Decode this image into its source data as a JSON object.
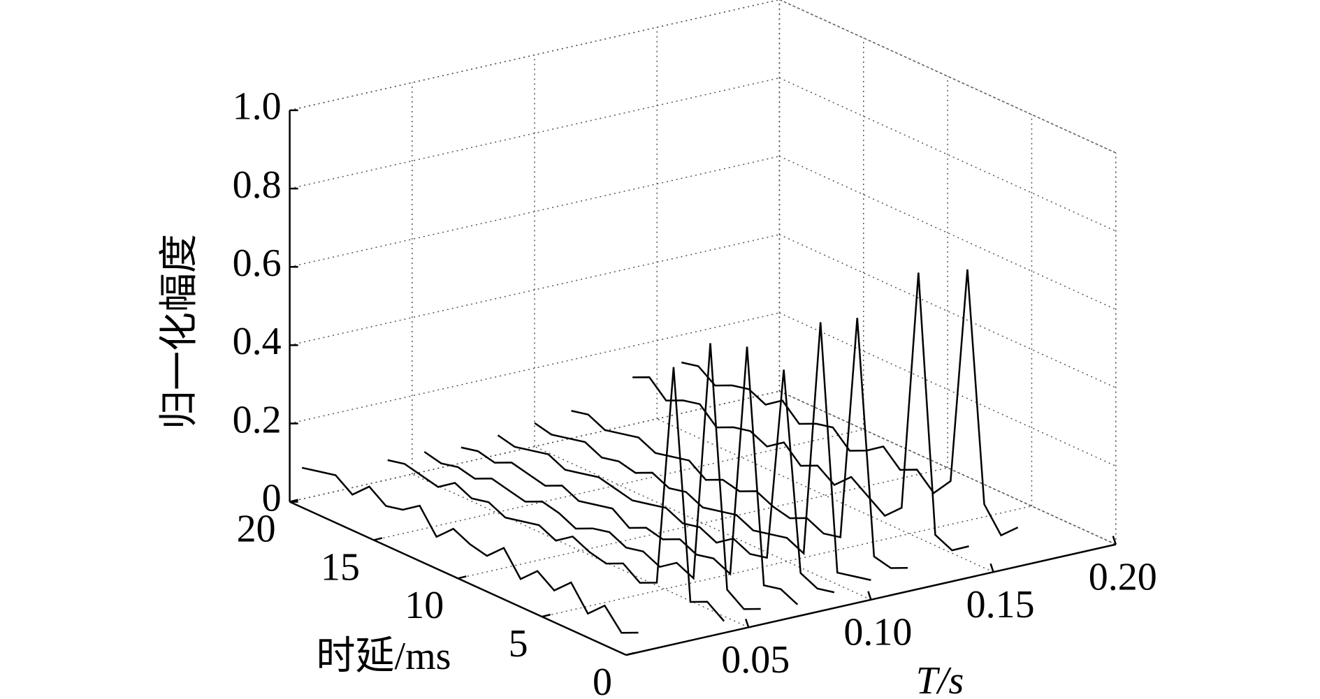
{
  "chart_data": {
    "type": "waterfall3d",
    "zlabel": "归一化幅度",
    "ylabel": "时延/ms",
    "xlabel": "T/s",
    "zlim": [
      0,
      1
    ],
    "zticks": [
      0,
      0.2,
      0.4,
      0.6,
      0.8,
      {
        "value": 1,
        "label": "1.0"
      }
    ],
    "ylim": [
      0,
      20
    ],
    "yticks": [
      0,
      5,
      10,
      15,
      20
    ],
    "xlim": [
      0,
      0.2
    ],
    "xticks": [
      0.05,
      {
        "value": 0.1,
        "label": "0.10"
      },
      0.15,
      {
        "value": 0.2,
        "label": "0.20"
      }
    ],
    "grid": true,
    "color": "#000000",
    "delays": [
      0,
      1,
      2,
      3,
      4,
      5,
      6,
      7,
      8,
      9,
      10,
      11,
      12,
      13,
      14,
      15,
      16,
      17,
      18,
      19,
      20
    ],
    "series": [
      {
        "t": 0.005,
        "values": [
          0.05,
          0.03,
          0.08,
          0.04,
          0.1,
          0.06,
          0.09,
          0.05,
          0.11,
          0.07,
          0.08,
          0.1,
          0.06,
          0.12,
          0.09,
          0.08,
          0.11,
          0.07,
          0.1,
          0.09,
          0.08
        ]
      },
      {
        "t": 0.04,
        "values": [
          0.03,
          0.06,
          0.04,
          0.62,
          0.05,
          0.03,
          0.06,
          0.04,
          0.05,
          0.07,
          0.04,
          0.06,
          0.05,
          0.04,
          0.06,
          0.05,
          0.07,
          0.04,
          0.05,
          0.06,
          0.05
        ]
      },
      {
        "t": 0.055,
        "values": [
          0.04,
          0.02,
          0.05,
          0.66,
          0.04,
          0.06,
          0.03,
          0.05,
          0.04,
          0.06,
          0.05,
          0.03,
          0.05,
          0.06,
          0.04,
          0.05,
          0.06,
          0.04,
          0.05,
          0.04,
          0.05
        ]
      },
      {
        "t": 0.07,
        "values": [
          0.03,
          0.05,
          0.04,
          0.63,
          0.03,
          0.05,
          0.04,
          0.06,
          0.04,
          0.05,
          0.03,
          0.06,
          0.05,
          0.04,
          0.06,
          0.04,
          0.05,
          0.06,
          0.04,
          0.05,
          0.04
        ]
      },
      {
        "t": 0.085,
        "values": [
          0.04,
          0.03,
          0.05,
          0.55,
          0.05,
          0.04,
          0.06,
          0.03,
          0.05,
          0.04,
          0.06,
          0.05,
          0.04,
          0.05,
          0.06,
          0.05,
          0.04,
          0.06,
          0.05,
          0.04,
          0.05
        ]
      },
      {
        "t": 0.1,
        "values": [
          0.05,
          0.04,
          0.03,
          0.65,
          0.04,
          0.06,
          0.05,
          0.04,
          0.06,
          0.05,
          0.04,
          0.06,
          0.05,
          0.07,
          0.05,
          0.06,
          0.05,
          0.07,
          0.06,
          0.05,
          0.06
        ]
      },
      {
        "t": 0.115,
        "values": [
          0.06,
          0.04,
          0.05,
          0.64,
          0.06,
          0.05,
          0.07,
          0.05,
          0.06,
          0.08,
          0.06,
          0.07,
          0.05,
          0.08,
          0.07,
          0.06,
          0.08,
          0.07,
          0.06,
          0.08,
          0.07
        ]
      },
      {
        "t": 0.14,
        "values": [
          0.08,
          0.05,
          0.07,
          0.72,
          0.1,
          0.06,
          0.09,
          0.12,
          0.08,
          0.11,
          0.09,
          0.13,
          0.1,
          0.12,
          0.11,
          0.09,
          0.13,
          0.12,
          0.1,
          0.14,
          0.12
        ]
      },
      {
        "t": 0.16,
        "values": [
          0.1,
          0.06,
          0.12,
          0.7,
          0.14,
          0.09,
          0.13,
          0.11,
          0.15,
          0.12,
          0.1,
          0.14,
          0.13,
          0.11,
          0.15,
          0.12,
          0.14,
          0.13,
          0.11,
          0.14,
          0.13
        ]
      }
    ]
  }
}
